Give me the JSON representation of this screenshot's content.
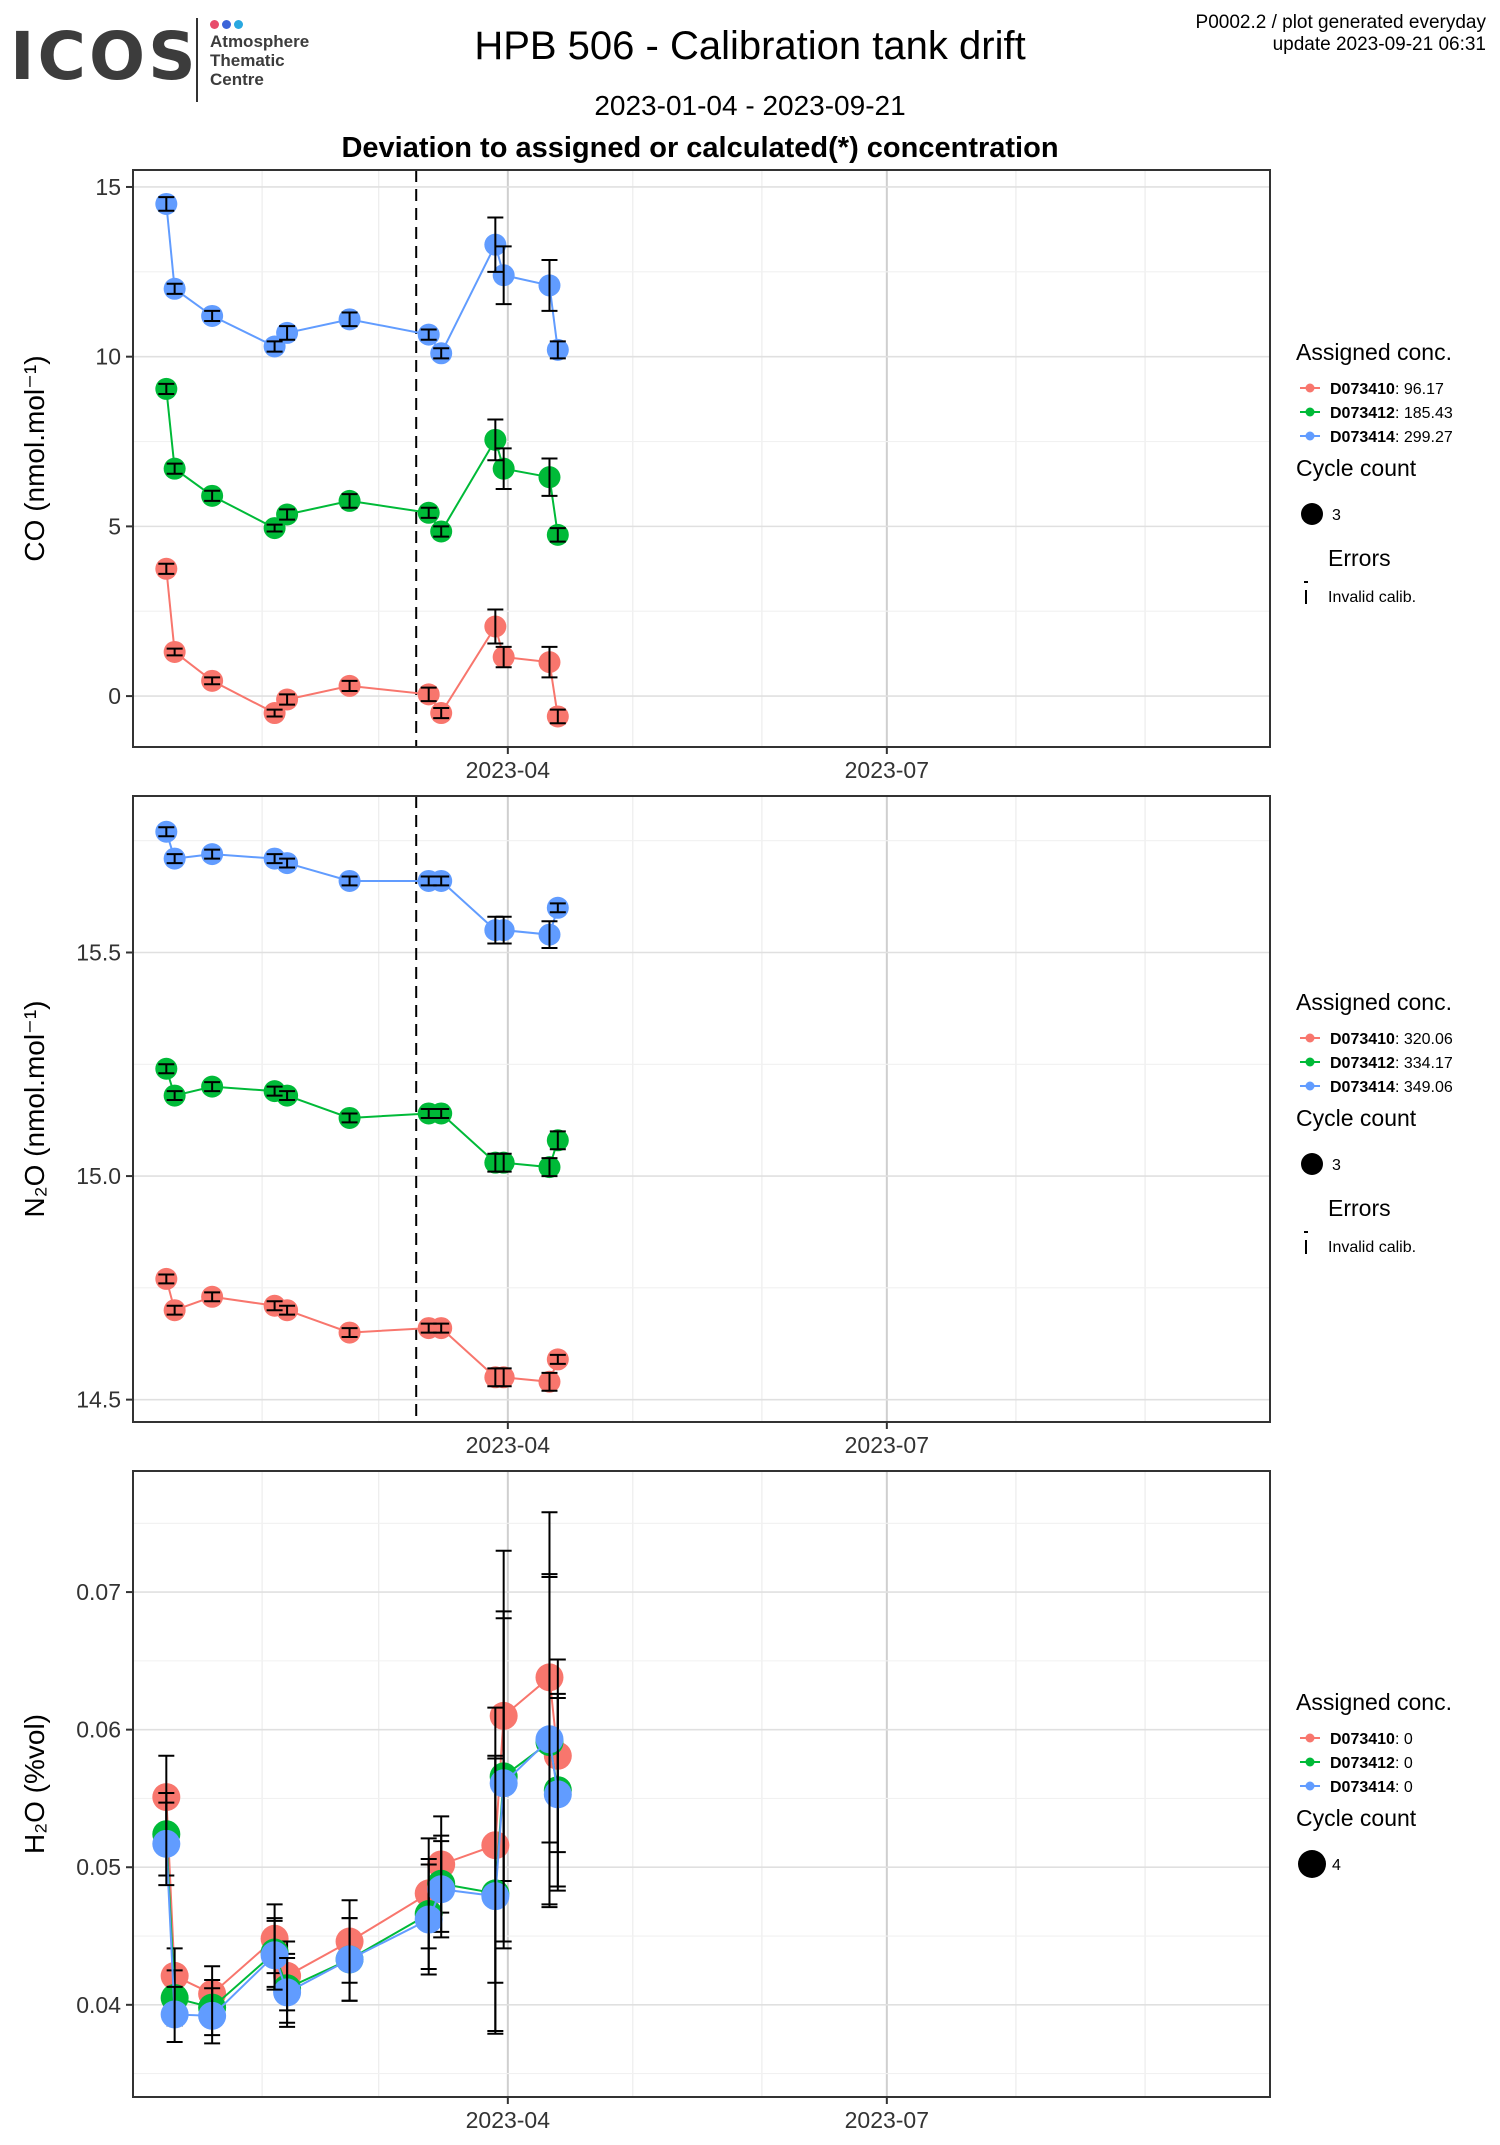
{
  "header": {
    "logo_text": "ICOS",
    "logo_subtext": [
      "Atmosphere",
      "Thematic",
      "Centre"
    ],
    "logo_dot_colors": [
      "#e84c6b",
      "#3b64d8",
      "#29a8e0"
    ],
    "title": "HPB 506 - Calibration tank drift",
    "date_range": "2023-01-04 - 2023-09-21",
    "subtitle": "Deviation to assigned or calculated(*) concentration",
    "plot_info": "P0002.2 / plot generated everyday",
    "update": "update  2023-09-21 06:31"
  },
  "colors": {
    "D073410": "#F8766D",
    "D073412": "#00BA38",
    "D073414": "#619CFF"
  },
  "chart_data": [
    {
      "type": "scatter",
      "ylabel": "CO (nmol.mol⁻¹)",
      "x_ticks": [
        "2023-04",
        "2023-07"
      ],
      "x_tick_dates": [
        "2023-04-01",
        "2023-07-01"
      ],
      "xlim": [
        "2023-01-01",
        "2023-10-01"
      ],
      "y_ticks": [
        "0",
        "5",
        "10",
        "15"
      ],
      "ylim": [
        -1.5,
        15.5
      ],
      "reference_line_date": "2023-03-10",
      "grid": true,
      "legend": {
        "title": "Assigned conc.",
        "entries": [
          {
            "id": "D073410",
            "value": "96.17"
          },
          {
            "id": "D073412",
            "value": "185.43"
          },
          {
            "id": "D073414",
            "value": "299.27"
          }
        ],
        "size_title": "Cycle count",
        "size_value": "3",
        "errors_title": "Errors",
        "errors_label": "Invalid calib.",
        "placement": "right"
      },
      "x_dates": [
        "2023-01-09",
        "2023-01-11",
        "2023-01-20",
        "2023-02-04",
        "2023-02-07",
        "2023-02-22",
        "2023-03-13",
        "2023-03-16",
        "2023-03-29",
        "2023-03-31",
        "2023-04-11",
        "2023-04-13"
      ],
      "series": [
        {
          "name": "D073410",
          "values": [
            3.75,
            1.3,
            0.45,
            -0.5,
            -0.1,
            0.3,
            0.05,
            -0.5,
            2.05,
            1.15,
            1.0,
            -0.6
          ],
          "errors": [
            0.15,
            0.1,
            0.1,
            0.1,
            0.15,
            0.15,
            0.2,
            0.15,
            0.5,
            0.3,
            0.45,
            0.2
          ]
        },
        {
          "name": "D073412",
          "values": [
            9.05,
            6.7,
            5.9,
            4.95,
            5.35,
            5.75,
            5.4,
            4.85,
            7.55,
            6.7,
            6.45,
            4.75
          ],
          "errors": [
            0.15,
            0.15,
            0.15,
            0.1,
            0.15,
            0.2,
            0.15,
            0.15,
            0.6,
            0.6,
            0.55,
            0.2
          ]
        },
        {
          "name": "D073414",
          "values": [
            14.5,
            12.0,
            11.2,
            10.3,
            10.7,
            11.1,
            10.65,
            10.1,
            13.3,
            12.4,
            12.1,
            10.2
          ],
          "errors": [
            0.2,
            0.15,
            0.15,
            0.15,
            0.2,
            0.2,
            0.15,
            0.15,
            0.8,
            0.85,
            0.75,
            0.25
          ]
        }
      ]
    },
    {
      "type": "scatter",
      "ylabel": "N₂O (nmol.mol⁻¹)",
      "x_ticks": [
        "2023-04",
        "2023-07"
      ],
      "x_tick_dates": [
        "2023-04-01",
        "2023-07-01"
      ],
      "xlim": [
        "2023-01-01",
        "2023-10-01"
      ],
      "y_ticks": [
        "14.5",
        "15.0",
        "15.5"
      ],
      "ylim": [
        14.45,
        15.85
      ],
      "reference_line_date": "2023-03-10",
      "grid": true,
      "legend": {
        "title": "Assigned conc.",
        "entries": [
          {
            "id": "D073410",
            "value": "320.06"
          },
          {
            "id": "D073412",
            "value": "334.17"
          },
          {
            "id": "D073414",
            "value": "349.06"
          }
        ],
        "size_title": "Cycle count",
        "size_value": "3",
        "errors_title": "Errors",
        "errors_label": "Invalid calib.",
        "placement": "right"
      },
      "x_dates": [
        "2023-01-09",
        "2023-01-11",
        "2023-01-20",
        "2023-02-04",
        "2023-02-07",
        "2023-02-22",
        "2023-03-13",
        "2023-03-16",
        "2023-03-29",
        "2023-03-31",
        "2023-04-11",
        "2023-04-13"
      ],
      "series": [
        {
          "name": "D073410",
          "values": [
            14.77,
            14.7,
            14.73,
            14.71,
            14.7,
            14.65,
            14.66,
            14.66,
            14.55,
            14.55,
            14.54,
            14.59
          ],
          "errors": [
            0.01,
            0.01,
            0.01,
            0.01,
            0.01,
            0.01,
            0.01,
            0.01,
            0.02,
            0.02,
            0.02,
            0.01
          ]
        },
        {
          "name": "D073412",
          "values": [
            15.24,
            15.18,
            15.2,
            15.19,
            15.18,
            15.13,
            15.14,
            15.14,
            15.03,
            15.03,
            15.02,
            15.08
          ],
          "errors": [
            0.01,
            0.01,
            0.01,
            0.01,
            0.01,
            0.01,
            0.01,
            0.01,
            0.02,
            0.02,
            0.02,
            0.02
          ]
        },
        {
          "name": "D073414",
          "values": [
            15.77,
            15.71,
            15.72,
            15.71,
            15.7,
            15.66,
            15.66,
            15.66,
            15.55,
            15.55,
            15.54,
            15.6
          ],
          "errors": [
            0.01,
            0.01,
            0.01,
            0.01,
            0.01,
            0.01,
            0.01,
            0.01,
            0.03,
            0.03,
            0.03,
            0.01
          ]
        }
      ]
    },
    {
      "type": "scatter",
      "ylabel": "H₂O (%vol)",
      "x_ticks": [
        "2023-04",
        "2023-07"
      ],
      "x_tick_dates": [
        "2023-04-01",
        "2023-07-01"
      ],
      "xlim": [
        "2023-01-01",
        "2023-10-01"
      ],
      "y_ticks": [
        "0.04",
        "0.05",
        "0.06",
        "0.07"
      ],
      "ylim": [
        0.0333,
        0.0788
      ],
      "reference_line_date": null,
      "grid": true,
      "legend": {
        "title": "Assigned conc.",
        "entries": [
          {
            "id": "D073410",
            "value": "0"
          },
          {
            "id": "D073412",
            "value": "0"
          },
          {
            "id": "D073414",
            "value": "0"
          }
        ],
        "size_title": "Cycle count",
        "size_value": "4",
        "errors_title": "",
        "errors_label": "",
        "placement": "right"
      },
      "x_dates": [
        "2023-01-09",
        "2023-01-11",
        "2023-01-20",
        "2023-02-04",
        "2023-02-07",
        "2023-02-22",
        "2023-03-13",
        "2023-03-16",
        "2023-03-29",
        "2023-03-31",
        "2023-04-11",
        "2023-04-13"
      ],
      "series": [
        {
          "name": "D073410",
          "values": [
            0.0551,
            0.0421,
            0.0408,
            0.0448,
            0.0421,
            0.0446,
            0.0481,
            0.0502,
            0.0516,
            0.061,
            0.0638,
            0.0581
          ],
          "errors": [
            0.003,
            0.002,
            0.002,
            0.0025,
            0.0025,
            0.003,
            0.004,
            0.0035,
            0.01,
            0.012,
            0.012,
            0.007
          ]
        },
        {
          "name": "D073412",
          "values": [
            0.0524,
            0.0405,
            0.0398,
            0.0438,
            0.0412,
            0.0433,
            0.0466,
            0.0488,
            0.0481,
            0.0566,
            0.0591,
            0.0556
          ],
          "errors": [
            0.003,
            0.002,
            0.002,
            0.0025,
            0.0025,
            0.003,
            0.004,
            0.0035,
            0.01,
            0.012,
            0.012,
            0.007
          ]
        },
        {
          "name": "D073414",
          "values": [
            0.0517,
            0.0393,
            0.0392,
            0.0436,
            0.0409,
            0.0433,
            0.0462,
            0.0484,
            0.0479,
            0.0561,
            0.0593,
            0.0553
          ],
          "errors": [
            0.003,
            0.002,
            0.002,
            0.0025,
            0.0025,
            0.003,
            0.004,
            0.0035,
            0.01,
            0.012,
            0.012,
            0.007
          ]
        }
      ]
    }
  ]
}
